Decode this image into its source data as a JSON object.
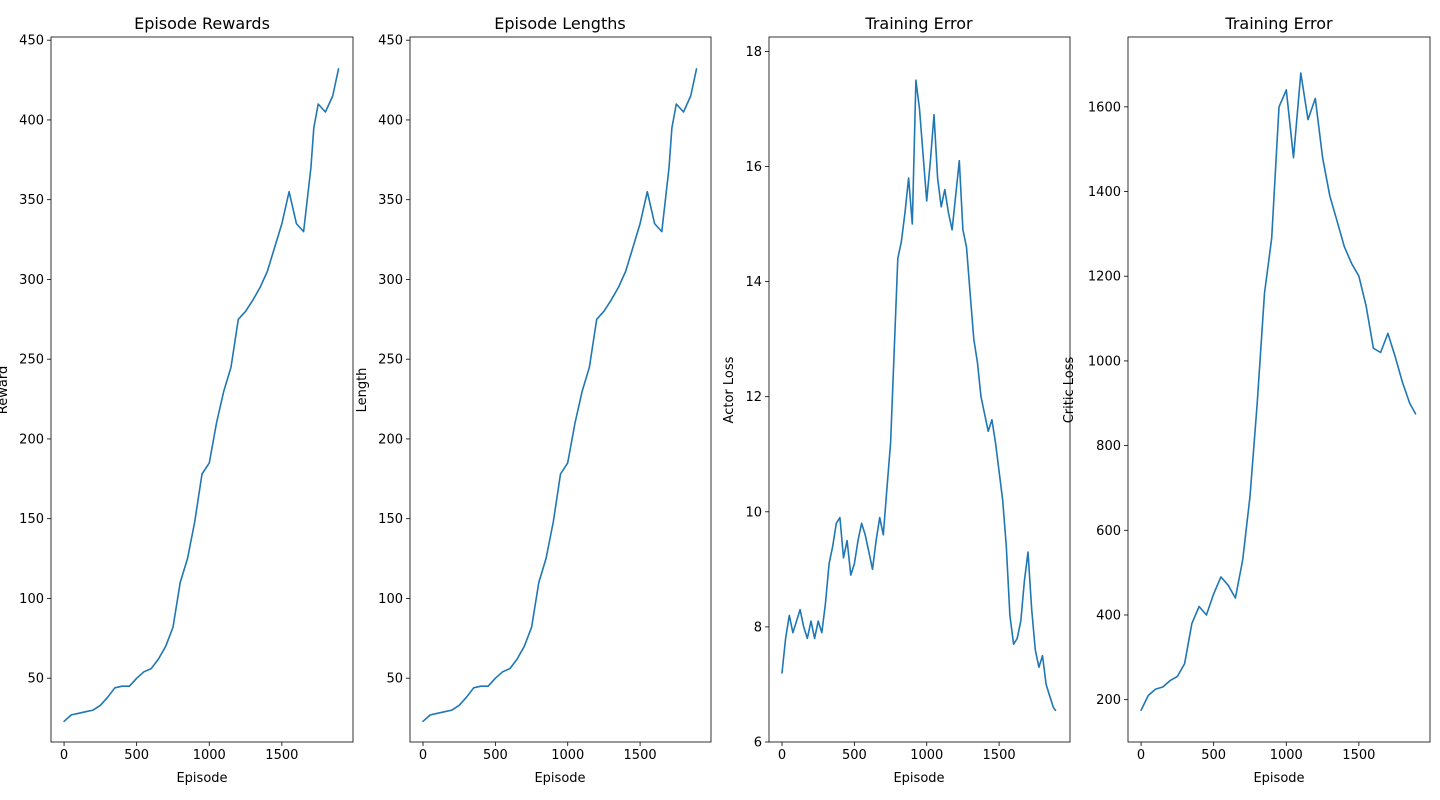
{
  "chart_data": [
    {
      "type": "line",
      "title": "Episode Rewards",
      "xlabel": "Episode",
      "ylabel": "Reward",
      "xlim": [
        -90,
        1990
      ],
      "ylim": [
        10,
        452
      ],
      "xticks": [
        0,
        500,
        1000,
        1500
      ],
      "yticks": [
        50,
        100,
        150,
        200,
        250,
        300,
        350,
        400,
        450
      ],
      "grid": false,
      "series": [
        {
          "color": "#1f77b4",
          "x": [
            0,
            50,
            100,
            150,
            200,
            250,
            300,
            350,
            400,
            450,
            500,
            550,
            600,
            650,
            700,
            750,
            800,
            850,
            900,
            950,
            1000,
            1050,
            1100,
            1150,
            1200,
            1250,
            1300,
            1350,
            1400,
            1450,
            1500,
            1550,
            1600,
            1650,
            1700,
            1720,
            1750,
            1800,
            1850,
            1890
          ],
          "y": [
            23,
            27,
            28,
            29,
            30,
            33,
            38,
            44,
            45,
            45,
            50,
            54,
            56,
            62,
            70,
            82,
            110,
            125,
            148,
            178,
            185,
            210,
            230,
            245,
            275,
            280,
            287,
            295,
            305,
            320,
            335,
            355,
            335,
            330,
            370,
            395,
            410,
            405,
            415,
            432
          ]
        }
      ]
    },
    {
      "type": "line",
      "title": "Episode Lengths",
      "xlabel": "Episode",
      "ylabel": "Length",
      "xlim": [
        -90,
        1990
      ],
      "ylim": [
        10,
        452
      ],
      "xticks": [
        0,
        500,
        1000,
        1500
      ],
      "yticks": [
        50,
        100,
        150,
        200,
        250,
        300,
        350,
        400,
        450
      ],
      "grid": false,
      "series": [
        {
          "color": "#1f77b4",
          "x": [
            0,
            50,
            100,
            150,
            200,
            250,
            300,
            350,
            400,
            450,
            500,
            550,
            600,
            650,
            700,
            750,
            800,
            850,
            900,
            950,
            1000,
            1050,
            1100,
            1150,
            1200,
            1250,
            1300,
            1350,
            1400,
            1450,
            1500,
            1550,
            1600,
            1650,
            1700,
            1720,
            1750,
            1800,
            1850,
            1890
          ],
          "y": [
            23,
            27,
            28,
            29,
            30,
            33,
            38,
            44,
            45,
            45,
            50,
            54,
            56,
            62,
            70,
            82,
            110,
            125,
            148,
            178,
            185,
            210,
            230,
            245,
            275,
            280,
            287,
            295,
            305,
            320,
            335,
            355,
            335,
            330,
            370,
            395,
            410,
            405,
            415,
            432
          ]
        }
      ]
    },
    {
      "type": "line",
      "title": "Training Error",
      "xlabel": "Episode",
      "ylabel": "Actor Loss",
      "xlim": [
        -90,
        1990
      ],
      "ylim": [
        6.0,
        18.25
      ],
      "xticks": [
        0,
        500,
        1000,
        1500
      ],
      "yticks": [
        6,
        8,
        10,
        12,
        14,
        16,
        18
      ],
      "grid": false,
      "series": [
        {
          "color": "#1f77b4",
          "x": [
            0,
            25,
            50,
            75,
            100,
            125,
            150,
            175,
            200,
            225,
            250,
            275,
            300,
            325,
            350,
            375,
            400,
            425,
            450,
            475,
            500,
            525,
            550,
            575,
            600,
            625,
            650,
            675,
            700,
            725,
            750,
            775,
            800,
            825,
            850,
            875,
            900,
            925,
            950,
            975,
            1000,
            1025,
            1050,
            1075,
            1100,
            1125,
            1150,
            1175,
            1200,
            1225,
            1250,
            1275,
            1300,
            1325,
            1350,
            1375,
            1400,
            1425,
            1450,
            1475,
            1500,
            1525,
            1550,
            1575,
            1600,
            1625,
            1650,
            1675,
            1700,
            1725,
            1750,
            1775,
            1800,
            1825,
            1850,
            1875,
            1890
          ],
          "y": [
            7.2,
            7.8,
            8.2,
            7.9,
            8.1,
            8.3,
            8.0,
            7.8,
            8.1,
            7.8,
            8.1,
            7.9,
            8.4,
            9.1,
            9.4,
            9.8,
            9.9,
            9.2,
            9.5,
            8.9,
            9.1,
            9.5,
            9.8,
            9.6,
            9.3,
            9.0,
            9.5,
            9.9,
            9.6,
            10.4,
            11.2,
            12.8,
            14.4,
            14.7,
            15.2,
            15.8,
            15.0,
            17.5,
            17.0,
            16.2,
            15.4,
            16.1,
            16.9,
            15.8,
            15.3,
            15.6,
            15.2,
            14.9,
            15.5,
            16.1,
            14.9,
            14.6,
            13.8,
            13.0,
            12.6,
            12.0,
            11.7,
            11.4,
            11.6,
            11.2,
            10.7,
            10.2,
            9.4,
            8.2,
            7.7,
            7.8,
            8.1,
            8.8,
            9.3,
            8.3,
            7.6,
            7.3,
            7.5,
            7.0,
            6.8,
            6.6,
            6.55
          ]
        }
      ]
    },
    {
      "type": "line",
      "title": "Training Error",
      "xlabel": "Episode",
      "ylabel": "Critic Loss",
      "xlim": [
        -90,
        1990
      ],
      "ylim": [
        100,
        1765
      ],
      "xticks": [
        0,
        500,
        1000,
        1500
      ],
      "yticks": [
        200,
        400,
        600,
        800,
        1000,
        1200,
        1400,
        1600
      ],
      "grid": false,
      "series": [
        {
          "color": "#1f77b4",
          "x": [
            0,
            50,
            100,
            150,
            200,
            250,
            300,
            350,
            400,
            450,
            500,
            550,
            600,
            650,
            700,
            750,
            800,
            850,
            900,
            950,
            1000,
            1050,
            1100,
            1150,
            1200,
            1250,
            1300,
            1350,
            1400,
            1450,
            1500,
            1550,
            1600,
            1650,
            1700,
            1750,
            1800,
            1850,
            1890
          ],
          "y": [
            175,
            210,
            225,
            230,
            245,
            255,
            285,
            380,
            420,
            400,
            450,
            490,
            470,
            440,
            530,
            680,
            900,
            1160,
            1290,
            1600,
            1640,
            1480,
            1680,
            1570,
            1620,
            1480,
            1390,
            1330,
            1270,
            1230,
            1200,
            1130,
            1030,
            1020,
            1065,
            1010,
            950,
            900,
            875
          ]
        }
      ]
    }
  ]
}
